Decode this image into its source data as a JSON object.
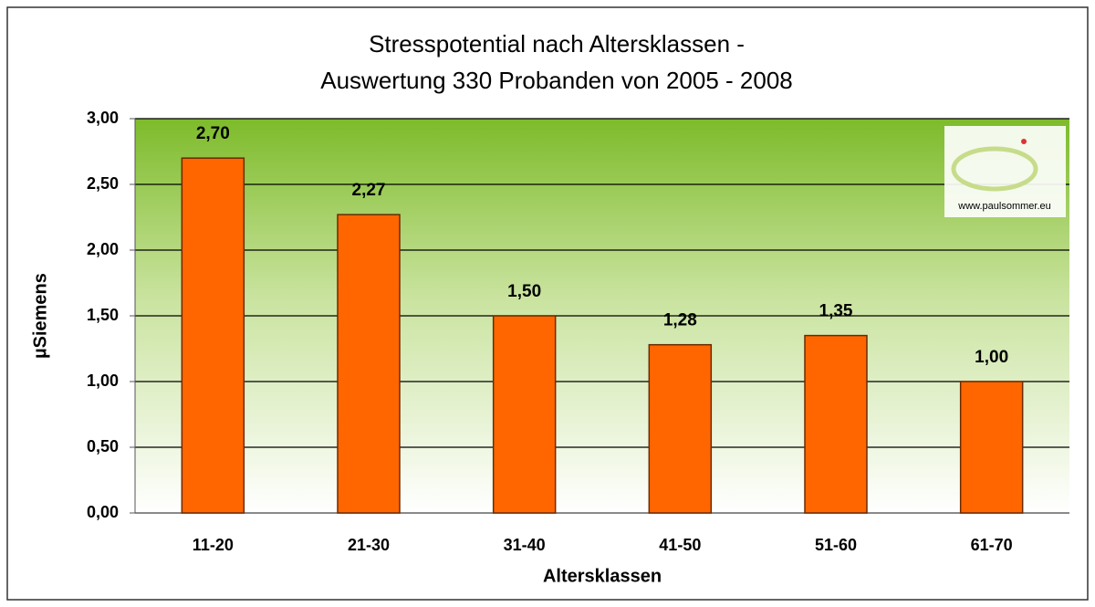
{
  "chart_data": {
    "type": "bar",
    "title": [
      "Stresspotential nach Altersklassen -",
      "Auswertung 330 Probanden von 2005 - 2008"
    ],
    "y_label": "µSiemens",
    "x_label": "Altersklassen",
    "watermark": "www.paulsommer.eu",
    "categories": [
      "11-20",
      "21-30",
      "31-40",
      "41-50",
      "51-60",
      "61-70"
    ],
    "values": [
      2.7,
      2.27,
      1.5,
      1.28,
      1.35,
      1.0
    ],
    "value_labels": [
      "2,70",
      "2,27",
      "1,50",
      "1,28",
      "1,35",
      "1,00"
    ],
    "color": "#ff6600",
    "ylim": [
      0,
      3
    ],
    "yticks": [
      {
        "value": 0,
        "label": "0,00"
      },
      {
        "value": 0.5,
        "label": "0,50"
      },
      {
        "value": 1,
        "label": "1,00"
      },
      {
        "value": 1.5,
        "label": "1,50"
      },
      {
        "value": 2,
        "label": "2,00"
      },
      {
        "value": 2.5,
        "label": "2,50"
      },
      {
        "value": 3,
        "label": "3,00"
      }
    ],
    "grid": true
  }
}
